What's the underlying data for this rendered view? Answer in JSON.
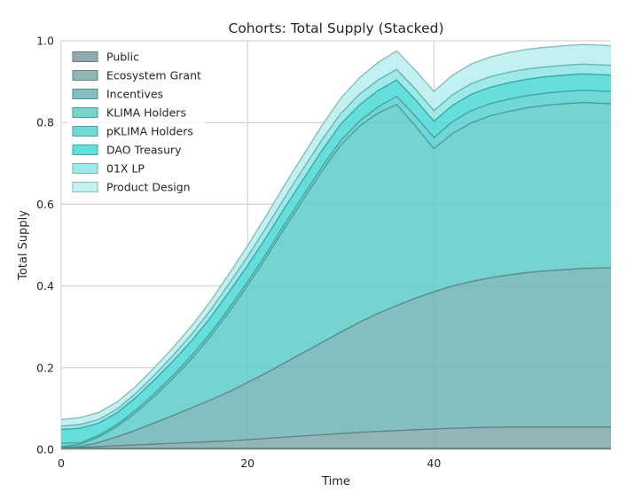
{
  "chart_data": {
    "type": "area",
    "stacked": true,
    "title": "Cohorts: Total Supply (Stacked)",
    "xlabel": "Time",
    "ylabel": "Total Supply",
    "xlim": [
      0,
      59
    ],
    "ylim": [
      0,
      1.0
    ],
    "xticks": [
      0,
      20,
      40
    ],
    "yticks": [
      0.0,
      0.2,
      0.4,
      0.6,
      0.8,
      1.0
    ],
    "xtick_labels": [
      "0",
      "20",
      "40"
    ],
    "ytick_labels": [
      "0.0",
      "0.2",
      "0.4",
      "0.6",
      "0.8",
      "1.0"
    ],
    "grid": true,
    "legend_position": "top-left",
    "x": [
      0,
      2,
      4,
      6,
      8,
      10,
      12,
      14,
      16,
      18,
      20,
      22,
      24,
      26,
      28,
      30,
      32,
      34,
      36,
      38,
      40,
      42,
      44,
      46,
      48,
      50,
      52,
      54,
      56,
      59
    ],
    "series": [
      {
        "name": "Public",
        "color": "#7f9ea0",
        "values": [
          0.003,
          0.003,
          0.003,
          0.003,
          0.003,
          0.003,
          0.003,
          0.003,
          0.003,
          0.003,
          0.003,
          0.003,
          0.003,
          0.003,
          0.003,
          0.003,
          0.003,
          0.003,
          0.003,
          0.003,
          0.003,
          0.003,
          0.003,
          0.003,
          0.003,
          0.003,
          0.003,
          0.003,
          0.003,
          0.003
        ]
      },
      {
        "name": "Ecosystem Grant",
        "color": "#7fa9ab",
        "values": [
          0.001,
          0.002,
          0.004,
          0.006,
          0.008,
          0.01,
          0.012,
          0.014,
          0.016,
          0.018,
          0.021,
          0.024,
          0.027,
          0.03,
          0.033,
          0.036,
          0.039,
          0.041,
          0.043,
          0.045,
          0.047,
          0.049,
          0.05,
          0.051,
          0.052,
          0.052,
          0.052,
          0.052,
          0.052,
          0.052
        ]
      },
      {
        "name": "Incentives",
        "color": "#6fb3b5",
        "values": [
          0.001,
          0.002,
          0.01,
          0.022,
          0.036,
          0.052,
          0.068,
          0.085,
          0.102,
          0.12,
          0.14,
          0.16,
          0.182,
          0.204,
          0.226,
          0.248,
          0.269,
          0.289,
          0.306,
          0.322,
          0.336,
          0.348,
          0.358,
          0.366,
          0.372,
          0.378,
          0.382,
          0.385,
          0.388,
          0.39
        ]
      },
      {
        "name": "KLIMA Holders",
        "color": "#5fcbc8",
        "values": [
          0.002,
          0.005,
          0.013,
          0.025,
          0.043,
          0.065,
          0.091,
          0.12,
          0.155,
          0.195,
          0.237,
          0.283,
          0.33,
          0.375,
          0.42,
          0.458,
          0.48,
          0.49,
          0.492,
          0.422,
          0.35,
          0.373,
          0.388,
          0.396,
          0.4,
          0.403,
          0.405,
          0.406,
          0.406,
          0.401
        ]
      },
      {
        "name": "pKLIMA Holders",
        "color": "#59d1d0",
        "values": [
          0.008,
          0.004,
          0.004,
          0.005,
          0.006,
          0.007,
          0.007,
          0.008,
          0.008,
          0.009,
          0.009,
          0.009,
          0.01,
          0.01,
          0.01,
          0.011,
          0.012,
          0.015,
          0.02,
          0.024,
          0.027,
          0.029,
          0.03,
          0.03,
          0.03,
          0.03,
          0.03,
          0.03,
          0.03,
          0.03
        ]
      },
      {
        "name": "DAO Treasury",
        "color": "#4ad8d6",
        "values": [
          0.034,
          0.036,
          0.03,
          0.029,
          0.031,
          0.033,
          0.035,
          0.036,
          0.038,
          0.04,
          0.04,
          0.04,
          0.04,
          0.04,
          0.04,
          0.04,
          0.04,
          0.04,
          0.04,
          0.04,
          0.04,
          0.04,
          0.04,
          0.04,
          0.04,
          0.04,
          0.04,
          0.04,
          0.04,
          0.04
        ]
      },
      {
        "name": "01X  LP",
        "color": "#8ee6e4",
        "values": [
          0.008,
          0.009,
          0.009,
          0.009,
          0.01,
          0.012,
          0.014,
          0.016,
          0.018,
          0.02,
          0.022,
          0.024,
          0.025,
          0.026,
          0.026,
          0.026,
          0.026,
          0.026,
          0.026,
          0.026,
          0.026,
          0.026,
          0.026,
          0.026,
          0.026,
          0.025,
          0.024,
          0.024,
          0.024,
          0.024
        ]
      },
      {
        "name": "Product Design",
        "color": "#b6efef",
        "values": [
          0.016,
          0.017,
          0.017,
          0.017,
          0.017,
          0.018,
          0.019,
          0.02,
          0.022,
          0.024,
          0.026,
          0.029,
          0.031,
          0.033,
          0.035,
          0.037,
          0.04,
          0.043,
          0.045,
          0.046,
          0.047,
          0.048,
          0.048,
          0.048,
          0.048,
          0.048,
          0.048,
          0.048,
          0.048,
          0.048
        ]
      }
    ]
  }
}
